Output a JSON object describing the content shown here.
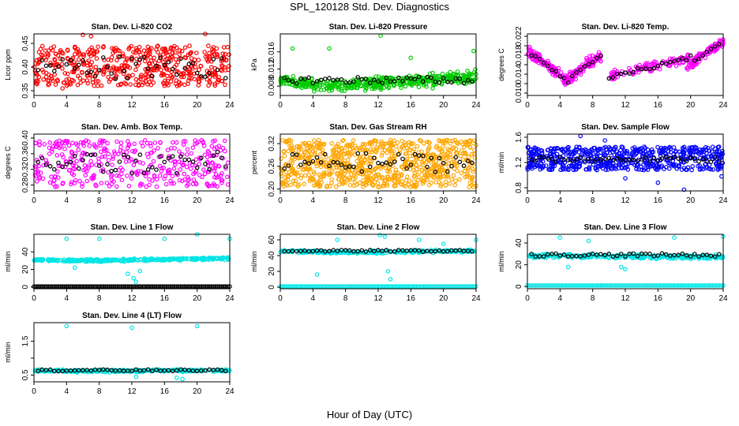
{
  "figure": {
    "title": "SPL_120128  Std. Dev. Diagnostics",
    "xlabel": "Hour of Day (UTC)"
  },
  "colors": {
    "black_series": "#000000",
    "red": "#ff0000",
    "green": "#00cc00",
    "magenta": "#ff00ff",
    "orange": "#ffa500",
    "blue": "#0000ff",
    "cyan": "#00e5e5"
  },
  "chart_data": [
    {
      "type": "scatter",
      "title": "Stan. Dev. Li-820 CO2",
      "ylabel": "Licor ppm",
      "xlim": [
        0,
        24
      ],
      "ylim": [
        0.34,
        0.47
      ],
      "xticks": [
        0,
        4,
        8,
        12,
        16,
        20,
        24
      ],
      "yticks": [
        0.35,
        0.4,
        0.45
      ],
      "ytick_labels": [
        "0.35",
        "0.40",
        "0.45"
      ],
      "series": [
        {
          "color": "red",
          "pattern": "band",
          "x_range": [
            0,
            24
          ],
          "y_range": [
            0.36,
            0.445
          ],
          "count": 500,
          "outliers": [
            [
              6,
              0.468
            ],
            [
              7,
              0.465
            ],
            [
              3.5,
              0.355
            ],
            [
              21,
              0.47
            ]
          ]
        },
        {
          "color": "black_series",
          "pattern": "hourly",
          "center": 0.4,
          "spread": 0.05
        }
      ]
    },
    {
      "type": "scatter",
      "title": "Stan. Dev. Li-820 Pressure",
      "ylabel": "kPa",
      "xlim": [
        0,
        24
      ],
      "ylim": [
        0.0058,
        0.0202
      ],
      "xticks": [
        0,
        4,
        8,
        12,
        16,
        20,
        24
      ],
      "yticks": [
        0.008,
        0.012,
        0.016
      ],
      "ytick_labels": [
        "0.008",
        "0.012",
        "0.016"
      ],
      "series": [
        {
          "color": "green",
          "pattern": "trend",
          "x_range": [
            0,
            24
          ],
          "y_start": 0.0095,
          "y_dip": 0.0078,
          "y_end": 0.0102,
          "noise": 0.0012,
          "count": 450,
          "outliers": [
            [
              1.5,
              0.0168
            ],
            [
              6,
              0.0168
            ],
            [
              12.3,
              0.0198
            ],
            [
              16,
              0.0146
            ],
            [
              23.7,
              0.0162
            ]
          ]
        },
        {
          "color": "black_series",
          "pattern": "hourly",
          "center": 0.0094,
          "spread": 0.0016
        }
      ]
    },
    {
      "type": "scatter",
      "title": "Stan. Dev. Li-820 Temp.",
      "ylabel": "degrees C",
      "xlim": [
        0,
        24
      ],
      "ylim": [
        0.0095,
        0.0225
      ],
      "xticks": [
        0,
        4,
        8,
        12,
        16,
        20,
        24
      ],
      "yticks": [
        0.01,
        0.012,
        0.014,
        0.016,
        0.018,
        0.02,
        0.022
      ],
      "ytick_labels": [
        "0.010",
        "",
        "0.014",
        "",
        "0.018",
        "",
        "0.022"
      ],
      "series": [
        {
          "color": "magenta",
          "pattern": "sawtooth",
          "segments": [
            [
              0,
              0.019,
              5,
              0.0125
            ],
            [
              4.5,
              0.0125,
              9,
              0.018
            ],
            [
              10,
              0.0135,
              20,
              0.0175
            ],
            [
              19.5,
              0.0155,
              24,
              0.021
            ]
          ],
          "noise": 0.0012,
          "count": 420
        },
        {
          "color": "black_series",
          "pattern": "hourly_follow"
        }
      ]
    },
    {
      "type": "scatter",
      "title": "Stan. Dev. Amb. Box Temp.",
      "ylabel": "degrees C",
      "xlim": [
        0,
        24
      ],
      "ylim": [
        0.265,
        0.41
      ],
      "xticks": [
        0,
        4,
        8,
        12,
        16,
        20,
        24
      ],
      "yticks": [
        0.28,
        0.32,
        0.36,
        0.4
      ],
      "ytick_labels": [
        "0.28",
        "0.32",
        "0.36",
        "0.40"
      ],
      "series": [
        {
          "color": "magenta",
          "pattern": "band",
          "x_range": [
            0,
            24
          ],
          "y_range": [
            0.275,
            0.395
          ],
          "count": 380,
          "outliers": []
        },
        {
          "color": "black_series",
          "pattern": "hourly",
          "center": 0.335,
          "spread": 0.06
        }
      ]
    },
    {
      "type": "scatter",
      "title": "Stan. Dev. Gas Stream RH",
      "ylabel": "percent",
      "xlim": [
        0,
        24
      ],
      "ylim": [
        0.195,
        0.345
      ],
      "xticks": [
        0,
        4,
        8,
        12,
        16,
        20,
        24
      ],
      "yticks": [
        0.2,
        0.26,
        0.32
      ],
      "ytick_labels": [
        "0.20",
        "0.26",
        "0.32"
      ],
      "series": [
        {
          "color": "orange",
          "pattern": "band",
          "x_range": [
            0,
            24
          ],
          "y_range": [
            0.205,
            0.33
          ],
          "count": 800,
          "outliers": []
        },
        {
          "color": "black_series",
          "pattern": "hourly",
          "center": 0.27,
          "spread": 0.05
        }
      ]
    },
    {
      "type": "scatter",
      "title": "Stan. Dev. Sample Flow",
      "ylabel": "ml/min",
      "xlim": [
        0,
        24
      ],
      "ylim": [
        0.75,
        1.65
      ],
      "xticks": [
        0,
        4,
        8,
        12,
        16,
        20,
        24
      ],
      "yticks": [
        0.8,
        1.2,
        1.6
      ],
      "ytick_labels": [
        "0.8",
        "1.2",
        "1.6"
      ],
      "series": [
        {
          "color": "blue",
          "pattern": "band",
          "x_range": [
            0,
            24
          ],
          "y_range": [
            1.08,
            1.45
          ],
          "count": 600,
          "outliers": [
            [
              6.5,
              1.62
            ],
            [
              9.5,
              1.55
            ],
            [
              12,
              0.95
            ],
            [
              16,
              0.88
            ],
            [
              19.2,
              0.77
            ],
            [
              23.8,
              0.98
            ]
          ]
        },
        {
          "color": "black_series",
          "pattern": "hourly",
          "center": 1.25,
          "spread": 0.08
        }
      ]
    },
    {
      "type": "scatter",
      "title": "Stan. Dev. Line 1 Flow",
      "ylabel": "ml/min",
      "xlim": [
        0,
        24
      ],
      "ylim": [
        -2,
        60
      ],
      "xticks": [
        0,
        4,
        8,
        12,
        16,
        20,
        24
      ],
      "yticks": [
        0,
        20,
        40
      ],
      "ytick_labels": [
        "0",
        "20",
        "40"
      ],
      "series": [
        {
          "color": "cyan",
          "pattern": "trend",
          "x_range": [
            0,
            24
          ],
          "y_start": 31,
          "y_dip": 30,
          "y_end": 32.5,
          "noise": 1.2,
          "count": 320,
          "outliers": [
            [
              4,
              55
            ],
            [
              8,
              55
            ],
            [
              12.2,
              10
            ],
            [
              12.5,
              6
            ],
            [
              13,
              18
            ],
            [
              16,
              55
            ],
            [
              20,
              60
            ],
            [
              24,
              55
            ],
            [
              5,
              22
            ],
            [
              11.5,
              15
            ]
          ]
        },
        {
          "color": "black_series",
          "pattern": "flat",
          "value": 0.5
        },
        {
          "color": "black_series",
          "pattern": "hourly",
          "center": 0.5,
          "spread": 0
        }
      ]
    },
    {
      "type": "scatter",
      "title": "Stan. Dev. Line 2 Flow",
      "ylabel": "ml/min",
      "xlim": [
        0,
        24
      ],
      "ylim": [
        -2,
        67
      ],
      "xticks": [
        0,
        4,
        8,
        12,
        16,
        20,
        24
      ],
      "yticks": [
        0,
        20,
        40,
        60
      ],
      "ytick_labels": [
        "0",
        "20",
        "40",
        "60"
      ],
      "series": [
        {
          "color": "cyan",
          "pattern": "trend",
          "x_range": [
            0,
            24
          ],
          "y_start": 46,
          "y_dip": 44,
          "y_end": 46,
          "noise": 1.5,
          "count": 300,
          "outliers": [
            [
              4.5,
              16
            ],
            [
              7,
              60
            ],
            [
              12.2,
              66
            ],
            [
              12.8,
              64
            ],
            [
              13.2,
              20
            ],
            [
              13.5,
              10
            ],
            [
              17,
              60
            ],
            [
              20,
              55
            ],
            [
              24,
              60
            ]
          ]
        },
        {
          "color": "cyan",
          "pattern": "flat",
          "value": 1
        },
        {
          "color": "black_series",
          "pattern": "hourly",
          "center": 46,
          "spread": 2
        }
      ]
    },
    {
      "type": "scatter",
      "title": "Stan. Dev. Line 3 Flow",
      "ylabel": "ml/min",
      "xlim": [
        0,
        24
      ],
      "ylim": [
        -2,
        48
      ],
      "xticks": [
        0,
        4,
        8,
        12,
        16,
        20,
        24
      ],
      "yticks": [
        0,
        20,
        40
      ],
      "ytick_labels": [
        "0",
        "20",
        "40"
      ],
      "series": [
        {
          "color": "cyan",
          "pattern": "trend",
          "x_range": [
            0,
            24
          ],
          "y_start": 28,
          "y_dip": 28,
          "y_end": 27,
          "noise": 1.4,
          "count": 320,
          "outliers": [
            [
              4,
              45
            ],
            [
              5,
              18
            ],
            [
              7.5,
              42
            ],
            [
              11.5,
              18
            ],
            [
              12,
              16
            ],
            [
              13,
              28
            ],
            [
              18,
              45
            ],
            [
              24,
              46
            ]
          ]
        },
        {
          "color": "cyan",
          "pattern": "flat",
          "value": 1
        },
        {
          "color": "black_series",
          "pattern": "hourly",
          "center": 29,
          "spread": 3
        }
      ]
    },
    {
      "type": "scatter",
      "title": "Stan. Dev. Line 4 (LT) Flow",
      "ylabel": "ml/min",
      "xlim": [
        0,
        24
      ],
      "ylim": [
        0.3,
        2.05
      ],
      "xticks": [
        0,
        4,
        8,
        12,
        16,
        20,
        24
      ],
      "yticks": [
        0.5,
        1.0,
        1.5
      ],
      "ytick_labels": [
        "0.5",
        "",
        "1.5"
      ],
      "series": [
        {
          "color": "cyan",
          "pattern": "trend",
          "x_range": [
            0,
            24
          ],
          "y_start": 0.63,
          "y_dip": 0.62,
          "y_end": 0.64,
          "noise": 0.03,
          "count": 300,
          "outliers": [
            [
              4,
              1.95
            ],
            [
              12,
              1.9
            ],
            [
              20,
              1.95
            ],
            [
              12.5,
              0.45
            ],
            [
              17.5,
              0.42
            ],
            [
              18.2,
              0.38
            ]
          ]
        },
        {
          "color": "black_series",
          "pattern": "hourly",
          "center": 0.64,
          "spread": 0.05
        }
      ]
    }
  ]
}
